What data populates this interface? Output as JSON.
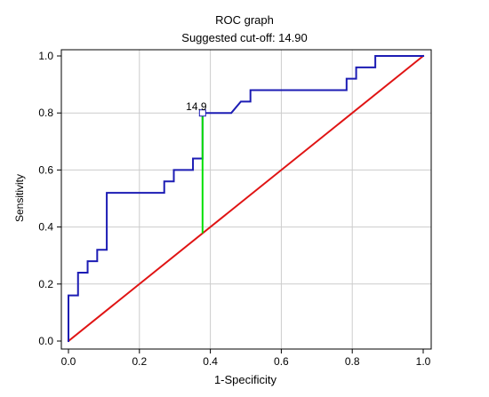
{
  "chart_data": {
    "type": "line",
    "title": "ROC graph",
    "subtitle": "Suggested cut-off: 14.90",
    "xlabel": "1-Specificity",
    "ylabel": "Sensitivity",
    "xlim": [
      0.0,
      1.0
    ],
    "ylim": [
      0.0,
      1.0
    ],
    "xticks": [
      0.0,
      0.2,
      0.4,
      0.6,
      0.8,
      1.0
    ],
    "yticks": [
      0.0,
      0.2,
      0.4,
      0.6,
      0.8,
      1.0
    ],
    "xtick_labels": [
      "0.0",
      "0.2",
      "0.4",
      "0.6",
      "0.8",
      "1.0"
    ],
    "ytick_labels": [
      "0.0",
      "0.2",
      "0.4",
      "0.6",
      "0.8",
      "1.0"
    ],
    "grid": true,
    "series": [
      {
        "color": "#1c1cb4",
        "x": [
          0.0,
          0.0,
          0.0081,
          0.0081,
          0.027,
          0.027,
          0.054,
          0.054,
          0.081,
          0.081,
          0.108,
          0.108,
          0.27,
          0.27,
          0.297,
          0.297,
          0.351,
          0.351,
          0.378,
          0.378,
          0.459,
          0.486,
          0.486,
          0.513,
          0.513,
          0.784,
          0.784,
          0.811,
          0.811,
          0.865,
          0.865,
          1.0
        ],
        "y": [
          0.0,
          0.16,
          0.16,
          0.16,
          0.16,
          0.24,
          0.24,
          0.28,
          0.28,
          0.32,
          0.32,
          0.52,
          0.52,
          0.56,
          0.56,
          0.6,
          0.6,
          0.64,
          0.64,
          0.8,
          0.8,
          0.84,
          0.84,
          0.84,
          0.88,
          0.88,
          0.92,
          0.92,
          0.96,
          0.96,
          1.0,
          1.0
        ]
      },
      {
        "color": "#e01414",
        "x": [
          0.0,
          1.0
        ],
        "y": [
          0.0,
          1.0
        ]
      }
    ],
    "cutoff": {
      "label": "14.9",
      "x": 0.378,
      "y_top": 0.8,
      "y_bottom": 0.378,
      "color": "#00e000"
    },
    "colors": {
      "grid": "#cccccc",
      "axis": "#000000",
      "background": "#ffffff"
    }
  }
}
